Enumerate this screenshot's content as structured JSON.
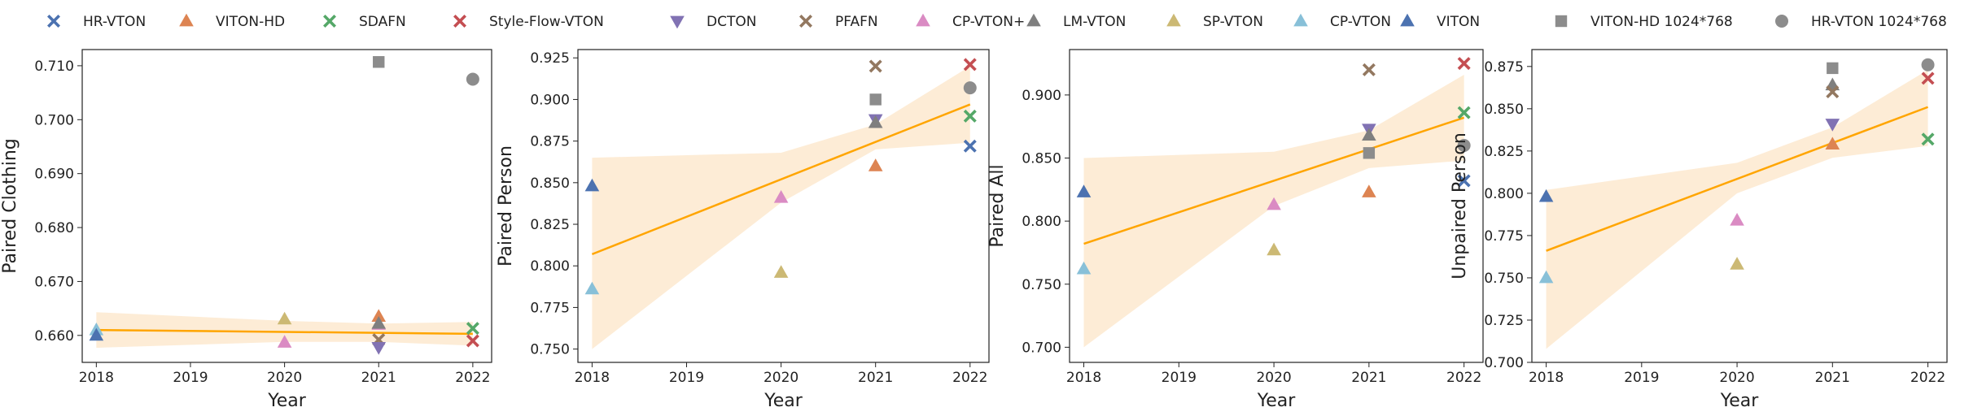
{
  "legend": [
    {
      "name": "HR-VTON",
      "marker": "x",
      "color": "#4c72b0"
    },
    {
      "name": "VITON-HD",
      "marker": "triangle-up",
      "color": "#dd8452"
    },
    {
      "name": "SDAFN",
      "marker": "x",
      "color": "#55a868"
    },
    {
      "name": "Style-Flow-VTON",
      "marker": "x",
      "color": "#c44e52"
    },
    {
      "name": "DCTON",
      "marker": "triangle-down",
      "color": "#8172b3"
    },
    {
      "name": "PFAFN",
      "marker": "x",
      "color": "#937860"
    },
    {
      "name": "CP-VTON+",
      "marker": "triangle-up",
      "color": "#da8bc3"
    },
    {
      "name": "LM-VTON",
      "marker": "triangle-up",
      "color": "#7f7f7f"
    },
    {
      "name": "SP-VTON",
      "marker": "triangle-up",
      "color": "#ccb974"
    },
    {
      "name": "CP-VTON",
      "marker": "triangle-up",
      "color": "#88c0d8"
    },
    {
      "name": "VITON",
      "marker": "triangle-up",
      "color": "#4c72b0"
    },
    {
      "name": "VITON-HD 1024*768",
      "marker": "square",
      "color": "#8c8c8c"
    },
    {
      "name": "HR-VTON 1024*768",
      "marker": "circle",
      "color": "#8c8c8c"
    }
  ],
  "colors": {
    "trend_line": "#ffa500",
    "confidence_band": "#fde9cf",
    "axis": "#222222"
  },
  "chart_data": [
    {
      "type": "scatter",
      "xlabel": "Year",
      "ylabel": "Paired Clothing",
      "xlim": [
        2017.85,
        2022.2
      ],
      "ylim": [
        0.655,
        0.713
      ],
      "xticks": [
        2018,
        2019,
        2020,
        2021,
        2022
      ],
      "yticks": [
        0.66,
        0.67,
        0.68,
        0.69,
        0.7,
        0.71
      ],
      "ytick_format": 3,
      "trend": {
        "x": [
          2018,
          2022
        ],
        "y": [
          0.661,
          0.6603
        ]
      },
      "band": {
        "x": [
          2018,
          2020,
          2021,
          2022
        ],
        "upper": [
          0.6643,
          0.6627,
          0.6622,
          0.6625
        ],
        "lower": [
          0.6577,
          0.6588,
          0.6588,
          0.6581
        ]
      },
      "points": [
        {
          "series": "CP-VTON",
          "x": 2018,
          "y": 0.661
        },
        {
          "series": "VITON",
          "x": 2018,
          "y": 0.66
        },
        {
          "series": "SP-VTON",
          "x": 2020,
          "y": 0.663
        },
        {
          "series": "CP-VTON+",
          "x": 2020,
          "y": 0.6587
        },
        {
          "series": "VITON-HD",
          "x": 2021,
          "y": 0.6635
        },
        {
          "series": "CP-VTON+",
          "x": 2021,
          "y": 0.662
        },
        {
          "series": "LM-VTON",
          "x": 2021,
          "y": 0.6622
        },
        {
          "series": "PFAFN",
          "x": 2021,
          "y": 0.6592
        },
        {
          "series": "DCTON",
          "x": 2021,
          "y": 0.6578
        },
        {
          "series": "VITON-HD 1024*768",
          "x": 2021,
          "y": 0.7107
        },
        {
          "series": "SDAFN",
          "x": 2022,
          "y": 0.6613
        },
        {
          "series": "Style-Flow-VTON",
          "x": 2022,
          "y": 0.659
        },
        {
          "series": "HR-VTON 1024*768",
          "x": 2022,
          "y": 0.7075
        }
      ]
    },
    {
      "type": "scatter",
      "xlabel": "Year",
      "ylabel": "Paired Person",
      "xlim": [
        2017.85,
        2022.2
      ],
      "ylim": [
        0.742,
        0.93
      ],
      "xticks": [
        2018,
        2019,
        2020,
        2021,
        2022
      ],
      "yticks": [
        0.75,
        0.775,
        0.8,
        0.825,
        0.85,
        0.875,
        0.9,
        0.925
      ],
      "ytick_format": 3,
      "trend": {
        "x": [
          2018,
          2022
        ],
        "y": [
          0.807,
          0.897
        ]
      },
      "band": {
        "x": [
          2018,
          2020,
          2021,
          2022
        ],
        "upper": [
          0.865,
          0.868,
          0.885,
          0.92
        ],
        "lower": [
          0.75,
          0.838,
          0.87,
          0.874
        ]
      },
      "points": [
        {
          "series": "VITON",
          "x": 2018,
          "y": 0.848
        },
        {
          "series": "CP-VTON",
          "x": 2018,
          "y": 0.786
        },
        {
          "series": "CP-VTON+",
          "x": 2020,
          "y": 0.841
        },
        {
          "series": "SP-VTON",
          "x": 2020,
          "y": 0.796
        },
        {
          "series": "PFAFN",
          "x": 2021,
          "y": 0.92
        },
        {
          "series": "VITON-HD 1024*768",
          "x": 2021,
          "y": 0.9
        },
        {
          "series": "DCTON",
          "x": 2021,
          "y": 0.888
        },
        {
          "series": "LM-VTON",
          "x": 2021,
          "y": 0.886
        },
        {
          "series": "VITON-HD",
          "x": 2021,
          "y": 0.86
        },
        {
          "series": "Style-Flow-VTON",
          "x": 2022,
          "y": 0.921
        },
        {
          "series": "HR-VTON 1024*768",
          "x": 2022,
          "y": 0.907
        },
        {
          "series": "SDAFN",
          "x": 2022,
          "y": 0.89
        },
        {
          "series": "HR-VTON",
          "x": 2022,
          "y": 0.872
        }
      ]
    },
    {
      "type": "scatter",
      "xlabel": "Year",
      "ylabel": "Paired All",
      "xlim": [
        2017.85,
        2022.2
      ],
      "ylim": [
        0.688,
        0.936
      ],
      "xticks": [
        2018,
        2019,
        2020,
        2021,
        2022
      ],
      "yticks": [
        0.7,
        0.75,
        0.8,
        0.85,
        0.9
      ],
      "ytick_format": 3,
      "trend": {
        "x": [
          2018,
          2022
        ],
        "y": [
          0.782,
          0.882
        ]
      },
      "band": {
        "x": [
          2018,
          2020,
          2021,
          2022
        ],
        "upper": [
          0.85,
          0.855,
          0.872,
          0.916
        ],
        "lower": [
          0.7,
          0.812,
          0.842,
          0.848
        ]
      },
      "points": [
        {
          "series": "VITON",
          "x": 2018,
          "y": 0.823
        },
        {
          "series": "CP-VTON",
          "x": 2018,
          "y": 0.762
        },
        {
          "series": "CP-VTON+",
          "x": 2020,
          "y": 0.813
        },
        {
          "series": "SP-VTON",
          "x": 2020,
          "y": 0.777
        },
        {
          "series": "PFAFN",
          "x": 2021,
          "y": 0.92
        },
        {
          "series": "DCTON",
          "x": 2021,
          "y": 0.873
        },
        {
          "series": "LM-VTON",
          "x": 2021,
          "y": 0.868
        },
        {
          "series": "VITON-HD 1024*768",
          "x": 2021,
          "y": 0.854
        },
        {
          "series": "VITON-HD",
          "x": 2021,
          "y": 0.823
        },
        {
          "series": "Style-Flow-VTON",
          "x": 2022,
          "y": 0.925
        },
        {
          "series": "SDAFN",
          "x": 2022,
          "y": 0.886
        },
        {
          "series": "HR-VTON 1024*768",
          "x": 2022,
          "y": 0.86
        },
        {
          "series": "HR-VTON",
          "x": 2022,
          "y": 0.832
        }
      ]
    },
    {
      "type": "scatter",
      "xlabel": "Year",
      "ylabel": "Unpaired Person",
      "xlim": [
        2017.85,
        2022.2
      ],
      "ylim": [
        0.7,
        0.885
      ],
      "xticks": [
        2018,
        2019,
        2020,
        2021,
        2022
      ],
      "yticks": [
        0.7,
        0.725,
        0.75,
        0.775,
        0.8,
        0.825,
        0.85,
        0.875
      ],
      "ytick_format": 3,
      "trend": {
        "x": [
          2018,
          2022
        ],
        "y": [
          0.766,
          0.851
        ]
      },
      "band": {
        "x": [
          2018,
          2020,
          2021,
          2022
        ],
        "upper": [
          0.802,
          0.818,
          0.839,
          0.873
        ],
        "lower": [
          0.708,
          0.8,
          0.821,
          0.828
        ]
      },
      "points": [
        {
          "series": "VITON",
          "x": 2018,
          "y": 0.798
        },
        {
          "series": "CP-VTON",
          "x": 2018,
          "y": 0.75
        },
        {
          "series": "CP-VTON+",
          "x": 2020,
          "y": 0.784
        },
        {
          "series": "SP-VTON",
          "x": 2020,
          "y": 0.758
        },
        {
          "series": "VITON-HD 1024*768",
          "x": 2021,
          "y": 0.874
        },
        {
          "series": "LM-VTON",
          "x": 2021,
          "y": 0.864
        },
        {
          "series": "PFAFN",
          "x": 2021,
          "y": 0.86
        },
        {
          "series": "DCTON",
          "x": 2021,
          "y": 0.841
        },
        {
          "series": "VITON-HD",
          "x": 2021,
          "y": 0.829
        },
        {
          "series": "HR-VTON 1024*768",
          "x": 2022,
          "y": 0.876
        },
        {
          "series": "Style-Flow-VTON",
          "x": 2022,
          "y": 0.868
        },
        {
          "series": "SDAFN",
          "x": 2022,
          "y": 0.832
        }
      ]
    }
  ]
}
